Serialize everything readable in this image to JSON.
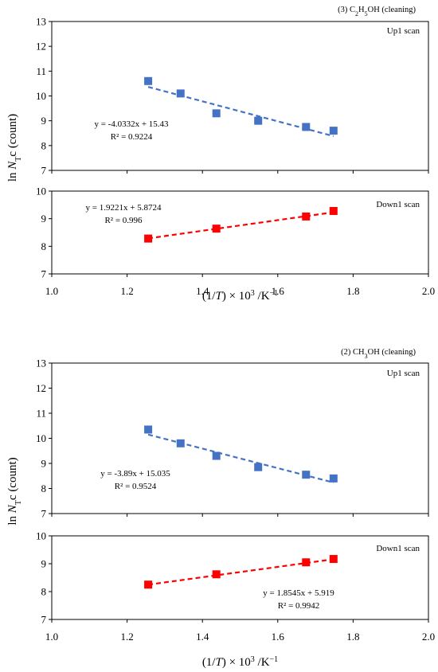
{
  "figure": {
    "ylabel": {
      "prefix": "ln ",
      "italic": "N",
      "sub": "T",
      "suffix": "c (count)"
    },
    "xlabel": {
      "open": "(1/",
      "italic": "T",
      "mid": ") × 10",
      "sup": "3",
      "unit": " /K",
      "unit_sup": "−1"
    }
  },
  "chart_data": [
    {
      "type": "scatter",
      "condition": {
        "pre": "(3) C",
        "s1": "2",
        "mid": "H",
        "s2": "5",
        "post": "OH (cleaning)"
      },
      "xlim": [
        1.0,
        2.0
      ],
      "xticks": [
        "1.0",
        "1.2",
        "1.4",
        "1.6",
        "1.8",
        "2.0"
      ],
      "panels": [
        {
          "name": "Up1 scan",
          "ylim": [
            7,
            13
          ],
          "yticks": [
            "7",
            "8",
            "9",
            "10",
            "11",
            "12",
            "13"
          ],
          "color": "#4472C4",
          "x": [
            1.256,
            1.342,
            1.437,
            1.548,
            1.675,
            1.748
          ],
          "y": [
            10.6,
            10.1,
            9.3,
            9.0,
            8.75,
            8.6
          ],
          "trendline": {
            "slope": -4.0332,
            "intercept": 15.43
          },
          "equation": "y = -4.0332x + 15.43",
          "r2": "R² = 0.9224"
        },
        {
          "name": "Down1 scan",
          "ylim": [
            7,
            10
          ],
          "yticks": [
            "7",
            "8",
            "9",
            "10"
          ],
          "color": "#FF0000",
          "x": [
            1.256,
            1.437,
            1.675,
            1.748
          ],
          "y": [
            8.28,
            8.64,
            9.08,
            9.28
          ],
          "trendline": {
            "slope": 1.9221,
            "intercept": 5.8724
          },
          "equation": "y = 1.9221x + 5.8724",
          "r2": "R² = 0.996"
        }
      ]
    },
    {
      "type": "scatter",
      "condition": {
        "pre": "(2) CH",
        "s1": "3",
        "mid": "OH (cleaning)",
        "s2": "",
        "post": ""
      },
      "xlim": [
        1.0,
        2.0
      ],
      "xticks": [
        "1.0",
        "1.2",
        "1.4",
        "1.6",
        "1.8",
        "2.0"
      ],
      "panels": [
        {
          "name": "Up1 scan",
          "ylim": [
            7,
            13
          ],
          "yticks": [
            "7",
            "8",
            "9",
            "10",
            "11",
            "12",
            "13"
          ],
          "color": "#4472C4",
          "x": [
            1.256,
            1.342,
            1.437,
            1.548,
            1.675,
            1.748
          ],
          "y": [
            10.35,
            9.8,
            9.3,
            8.85,
            8.55,
            8.4
          ],
          "trendline": {
            "slope": -3.89,
            "intercept": 15.035
          },
          "equation": "y = -3.89x + 15.035",
          "r2": "R² = 0.9524"
        },
        {
          "name": "Down1 scan",
          "ylim": [
            7,
            10
          ],
          "yticks": [
            "7",
            "8",
            "9",
            "10"
          ],
          "color": "#FF0000",
          "x": [
            1.256,
            1.437,
            1.675,
            1.748
          ],
          "y": [
            8.25,
            8.62,
            9.05,
            9.17
          ],
          "trendline": {
            "slope": 1.8545,
            "intercept": 5.919
          },
          "equation": "y = 1.8545x + 5.919",
          "r2": "R² = 0.9942"
        }
      ]
    }
  ]
}
